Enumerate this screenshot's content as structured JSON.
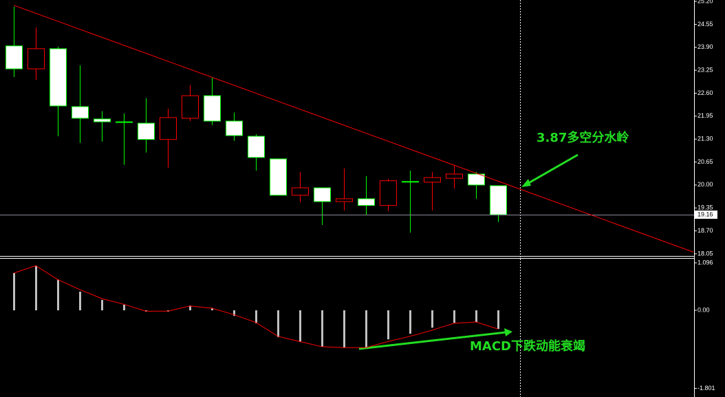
{
  "chart_data": [
    {
      "type": "candlestick",
      "open": [
        23.94,
        23.29,
        23.86,
        22.22,
        21.87,
        21.79,
        21.75,
        21.29,
        21.89,
        22.53,
        21.81,
        21.38,
        20.74,
        19.71,
        19.92,
        19.53,
        19.61,
        19.42,
        20.1,
        20.08,
        20.19,
        20.31,
        19.98
      ],
      "high": [
        25.05,
        24.46,
        23.92,
        23.39,
        22.09,
        22.03,
        22.46,
        22.16,
        22.83,
        23.06,
        22.05,
        21.44,
        20.74,
        20.37,
        19.92,
        20.47,
        20.25,
        20.18,
        20.41,
        20.37,
        20.57,
        20.37,
        19.98
      ],
      "low": [
        23.06,
        22.98,
        21.38,
        21.19,
        21.23,
        20.57,
        20.92,
        20.49,
        21.81,
        21.7,
        21.25,
        20.41,
        19.71,
        19.51,
        18.87,
        19.28,
        19.14,
        19.26,
        18.65,
        19.28,
        19.9,
        19.61,
        18.95
      ],
      "close": [
        23.29,
        23.86,
        22.24,
        21.89,
        21.79,
        21.77,
        21.29,
        21.91,
        22.53,
        21.81,
        21.4,
        20.78,
        19.71,
        19.92,
        19.53,
        19.61,
        19.42,
        20.12,
        20.1,
        20.21,
        20.31,
        20.0,
        19.16
      ],
      "up_color": "#ff0000",
      "down_color": "#00ff00",
      "ylim": [
        17.99,
        25.24
      ],
      "yticks": [
        {
          "value": 25.2,
          "label": "25.20"
        },
        {
          "value": 24.55,
          "label": "24.55"
        },
        {
          "value": 23.9,
          "label": "23.90"
        },
        {
          "value": 23.25,
          "label": "23.25"
        },
        {
          "value": 22.6,
          "label": "22.60"
        },
        {
          "value": 21.95,
          "label": "21.95"
        },
        {
          "value": 21.3,
          "label": "21.30"
        },
        {
          "value": 20.65,
          "label": "20.65"
        },
        {
          "value": 20,
          "label": "20.00"
        },
        {
          "value": 19.35,
          "label": "19.35"
        },
        {
          "value": 18.7,
          "label": "18.70"
        },
        {
          "value": 18.05,
          "label": "18.05"
        }
      ],
      "current_price": 19.16,
      "trendline": {
        "x": [
          0,
          30.875
        ],
        "y": [
          25.09,
          18.1
        ],
        "color": "#ff0000"
      },
      "annotation": {
        "text": "3.87多空分水岭",
        "color": "#22dd22"
      }
    },
    {
      "type": "macd",
      "histogram": [
        0.86,
        1.03,
        0.71,
        0.43,
        0.24,
        0.13,
        -0.03,
        -0.03,
        0.11,
        0.05,
        -0.13,
        -0.3,
        -0.62,
        -0.73,
        -0.84,
        -0.86,
        -0.86,
        -0.67,
        -0.54,
        -0.4,
        -0.29,
        -0.27,
        -0.43
      ],
      "signal": [
        0.86,
        1.03,
        0.71,
        0.48,
        0.27,
        0.14,
        -0.02,
        -0.02,
        0.1,
        0.05,
        -0.1,
        -0.28,
        -0.6,
        -0.72,
        -0.84,
        -0.86,
        -0.86,
        -0.72,
        -0.6,
        -0.46,
        -0.3,
        -0.27,
        -0.43
      ],
      "histogram_color": "#c0c0c0",
      "signal_color": "#ff0000",
      "ylim": [
        -2.0,
        1.175
      ],
      "yticks": [
        1.096,
        {
          "value": 0,
          "label": "0.00"
        },
        -1.801
      ],
      "annotation": {
        "text": "MACD下跌动能衰竭",
        "color": "#22dd22"
      }
    }
  ]
}
